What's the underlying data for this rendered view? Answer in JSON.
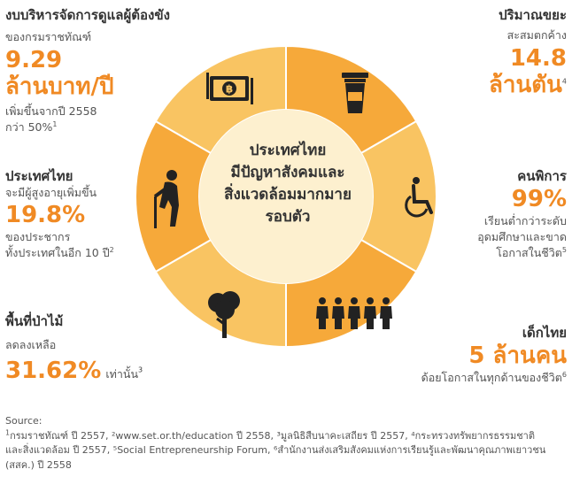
{
  "colors": {
    "accent": "#f08a24",
    "ring_dark": "#f6a93a",
    "ring_light": "#f9c462",
    "center": "#fdf0cf"
  },
  "center_title": [
    "ประเทศไทย",
    "มีปัญหาสังคมและ",
    "สิ่งแวดล้อมมากมาย",
    "รอบตัว"
  ],
  "budget": {
    "title": "งบบริหารจัดการดูแลผู้ต้องขัง",
    "sub": "ของกรมราชทัณฑ์",
    "value_line1": "9.29",
    "value_line2": "ล้านบาท/ปี",
    "note1": "เพิ่มขึ้นจากปี 2558",
    "note2": "กว่า 50%",
    "ref": "1",
    "icon": "money-icon"
  },
  "waste": {
    "title": "ปริมาณขยะ",
    "sub": "สะสมตกค้าง",
    "value_line1": "14.8",
    "value_line2": "ล้านตัน",
    "ref": "4",
    "icon": "trash-bin-icon"
  },
  "elderly": {
    "title": "ประเทศไทย",
    "sub": "จะมีผู้สูงอายุเพิ่มขึ้น",
    "value": "19.8%",
    "note1": "ของประชากร",
    "note2": "ทั้งประเทศในอีก 10 ปี",
    "ref": "2",
    "icon": "elderly-person-icon"
  },
  "disabled": {
    "title": "คนพิการ",
    "value": "99%",
    "note1": "เรียนต่ำกว่าระดับ",
    "note2": "อุดมศึกษาและขาด",
    "note3": "โอกาสในชีวิต",
    "ref": "5",
    "icon": "wheelchair-icon"
  },
  "forest": {
    "title": "พื้นที่ป่าไม้",
    "sub": "ลดลงเหลือ",
    "value": "31.62%",
    "suffix": "เท่านั้น",
    "ref": "3",
    "icon": "tree-icon"
  },
  "children": {
    "title": "เด็กไทย",
    "value": "5 ล้านคน",
    "note": "ด้อยโอกาสในทุกด้านของชีวิต",
    "ref": "6",
    "icon": "children-group-icon"
  },
  "source": {
    "label": "Source:",
    "line1": "กรมราชทัณฑ์ ปี 2557, ²www.set.or.th/education ปี 2558, ³มูลนิธิสืบนาคะเสถียร ปี 2557, ⁴กระทรวงทรัพยากรธรรมชาติ",
    "line1_ref": "1",
    "line2": "และสิ่งแวดล้อม ปี 2557, ⁵Social Entrepreneurship Forum, ⁶สำนักงานส่งเสริมสังคมแห่งการเรียนรู้และพัฒนาคุณภาพเยาวชน",
    "line3": "(สสค.) ปี 2558"
  }
}
